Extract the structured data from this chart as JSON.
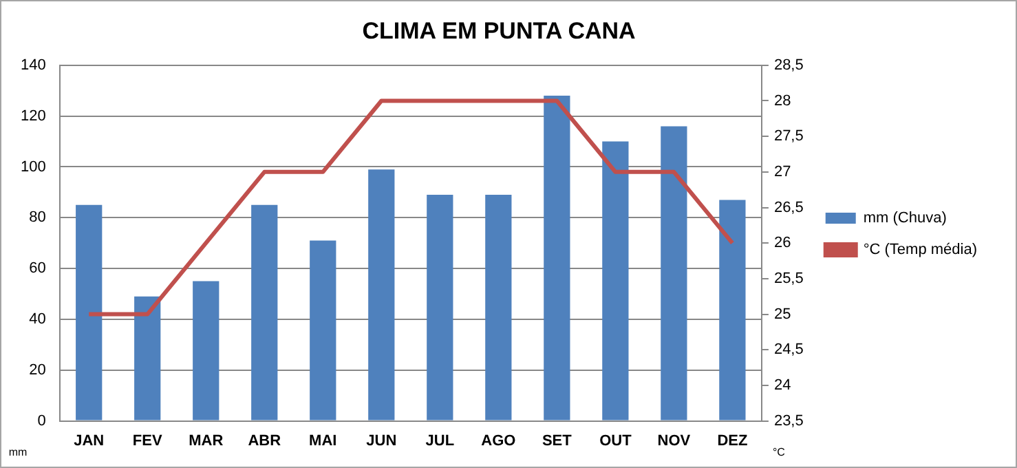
{
  "chart_data": {
    "type": "bar",
    "title": "CLIMA EM PUNTA CANA",
    "ylabel": "mm",
    "y2label": "°C",
    "categories": [
      "JAN",
      "FEV",
      "MAR",
      "ABR",
      "MAI",
      "JUN",
      "JUL",
      "AGO",
      "SET",
      "OUT",
      "NOV",
      "DEZ"
    ],
    "series": [
      {
        "name": "mm (Chuva)",
        "color": "#4f81bd",
        "values": [
          85,
          49,
          55,
          85,
          71,
          99,
          89,
          89,
          128,
          110,
          116,
          87
        ]
      },
      {
        "name": "°C (Temp média)",
        "type": "line",
        "axis": "y2",
        "color": "#c0504d",
        "values": [
          25,
          25,
          26,
          27,
          27,
          28,
          28,
          28,
          28,
          27,
          27,
          26
        ]
      }
    ],
    "ylim": [
      0,
      140
    ],
    "yticks": [
      0,
      20,
      40,
      60,
      80,
      100,
      120,
      140
    ],
    "y2lim": [
      23.5,
      28.5
    ],
    "y2ticks": [
      {
        "value": 23.5,
        "label": "23,5"
      },
      24,
      {
        "value": 24.5,
        "label": "24,5"
      },
      25,
      {
        "value": 25.5,
        "label": "25,5"
      },
      26,
      {
        "value": 26.5,
        "label": "26,5"
      },
      27,
      {
        "value": 27.5,
        "label": "27,5"
      },
      28,
      {
        "value": 28.5,
        "label": "28,5"
      }
    ],
    "grid": "y",
    "legend": "right",
    "marker": "none",
    "line_style": "solid"
  }
}
